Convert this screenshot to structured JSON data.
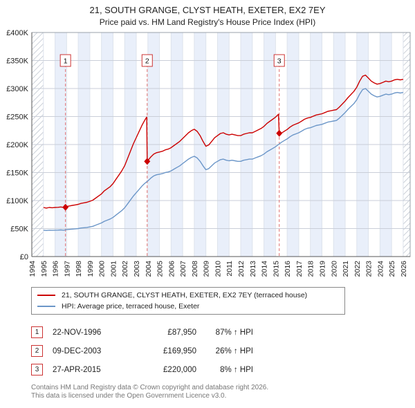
{
  "header": {
    "title": "21, SOUTH GRANGE, CLYST HEATH, EXETER, EX2 7EY",
    "subtitle": "Price paid vs. HM Land Registry's House Price Index (HPI)"
  },
  "colors": {
    "property_line": "#cc0000",
    "hpi_line": "#6b96c8",
    "badge_border": "#cc3333",
    "band_fill": "#e9effa",
    "grid_h": "#c9ced8",
    "grid_v": "#dde3ec",
    "sale_line": "#e07070",
    "hatch_line": "#b6bdc8",
    "axis": "#555555"
  },
  "chart_data": {
    "type": "line",
    "title": "Price paid vs. HM Land Registry's House Price Index (HPI)",
    "values_unit": "GBP thousands",
    "x_range": [
      1994,
      2026.6
    ],
    "y_range": [
      0,
      400
    ],
    "y_tick_values": [
      0,
      50,
      100,
      150,
      200,
      250,
      300,
      350,
      400
    ],
    "y_tick_labels": [
      "£0",
      "£50K",
      "£100K",
      "£150K",
      "£200K",
      "£250K",
      "£300K",
      "£350K",
      "£400K"
    ],
    "x_tick_years": [
      1994,
      1995,
      1996,
      1997,
      1998,
      1999,
      2000,
      2001,
      2002,
      2003,
      2004,
      2005,
      2006,
      2007,
      2008,
      2009,
      2010,
      2011,
      2012,
      2013,
      2014,
      2015,
      2016,
      2017,
      2018,
      2019,
      2020,
      2021,
      2022,
      2023,
      2024,
      2025,
      2026
    ],
    "hatch_left_end": 1995,
    "hatch_right_start": 2026,
    "legend_position": "bottom",
    "grid": true,
    "series": [
      {
        "name": "21, SOUTH GRANGE, CLYST HEATH, EXETER, EX2 7EY (terraced house)",
        "color": "#cc0000",
        "points": [
          [
            1995,
            87.6
          ],
          [
            1995.25,
            86.6
          ],
          [
            1995.5,
            87.6
          ],
          [
            1995.75,
            87.2
          ],
          [
            1996,
            87.6
          ],
          [
            1996.25,
            87.9
          ],
          [
            1996.5,
            88.5
          ],
          [
            1996.75,
            87.6
          ],
          [
            1996.9,
            87.95
          ],
          [
            1997,
            89.4
          ],
          [
            1997.25,
            90.4
          ],
          [
            1997.5,
            91.3
          ],
          [
            1997.75,
            92.2
          ],
          [
            1998,
            93.2
          ],
          [
            1998.25,
            95
          ],
          [
            1998.5,
            95.9
          ],
          [
            1998.75,
            96.9
          ],
          [
            1999,
            98.7
          ],
          [
            1999.25,
            100.6
          ],
          [
            1999.5,
            104.3
          ],
          [
            1999.75,
            108.1
          ],
          [
            2000,
            111.8
          ],
          [
            2000.25,
            117.4
          ],
          [
            2000.5,
            121.1
          ],
          [
            2000.75,
            124.8
          ],
          [
            2001,
            130.4
          ],
          [
            2001.25,
            137.9
          ],
          [
            2001.5,
            145.3
          ],
          [
            2001.75,
            152.8
          ],
          [
            2002,
            162.1
          ],
          [
            2002.25,
            175.1
          ],
          [
            2002.5,
            188.2
          ],
          [
            2002.75,
            201.2
          ],
          [
            2003,
            212.4
          ],
          [
            2003.25,
            223.6
          ],
          [
            2003.5,
            234.7
          ],
          [
            2003.75,
            244.1
          ],
          [
            2003.9,
            249
          ],
          [
            2003.94,
            169.95
          ],
          [
            2004,
            171.5
          ],
          [
            2004.25,
            177.8
          ],
          [
            2004.5,
            182.9
          ],
          [
            2004.75,
            185.4
          ],
          [
            2005,
            186.7
          ],
          [
            2005.25,
            188
          ],
          [
            2005.5,
            190.5
          ],
          [
            2005.75,
            191.8
          ],
          [
            2006,
            194.3
          ],
          [
            2006.25,
            198.1
          ],
          [
            2006.5,
            201.9
          ],
          [
            2006.75,
            205.7
          ],
          [
            2007,
            210.8
          ],
          [
            2007.25,
            215.9
          ],
          [
            2007.5,
            221
          ],
          [
            2007.75,
            224.8
          ],
          [
            2008,
            227.3
          ],
          [
            2008.25,
            223.5
          ],
          [
            2008.5,
            215.9
          ],
          [
            2008.75,
            205.7
          ],
          [
            2009,
            196.9
          ],
          [
            2009.25,
            199.4
          ],
          [
            2009.5,
            205.7
          ],
          [
            2009.75,
            212.1
          ],
          [
            2010,
            215.9
          ],
          [
            2010.25,
            219.7
          ],
          [
            2010.5,
            221
          ],
          [
            2010.75,
            218.4
          ],
          [
            2011,
            217.2
          ],
          [
            2011.25,
            218.4
          ],
          [
            2011.5,
            217.2
          ],
          [
            2011.75,
            215.9
          ],
          [
            2012,
            215.9
          ],
          [
            2012.25,
            218.4
          ],
          [
            2012.5,
            219.7
          ],
          [
            2012.75,
            221
          ],
          [
            2013,
            221
          ],
          [
            2013.25,
            223.5
          ],
          [
            2013.5,
            226.1
          ],
          [
            2013.75,
            228.6
          ],
          [
            2014,
            232.4
          ],
          [
            2014.25,
            237.5
          ],
          [
            2014.5,
            241.3
          ],
          [
            2014.75,
            245.1
          ],
          [
            2015,
            248.9
          ],
          [
            2015.25,
            254
          ],
          [
            2015.32,
            220
          ],
          [
            2015.5,
            220.3
          ],
          [
            2015.75,
            223.6
          ],
          [
            2016,
            226.8
          ],
          [
            2016.25,
            231.1
          ],
          [
            2016.5,
            234.4
          ],
          [
            2016.75,
            236.5
          ],
          [
            2017,
            238.7
          ],
          [
            2017.25,
            241.9
          ],
          [
            2017.5,
            245.2
          ],
          [
            2017.75,
            247.3
          ],
          [
            2018,
            248.4
          ],
          [
            2018.25,
            250.6
          ],
          [
            2018.5,
            252.7
          ],
          [
            2018.75,
            253.8
          ],
          [
            2019,
            254.9
          ],
          [
            2019.25,
            257
          ],
          [
            2019.5,
            259.2
          ],
          [
            2019.75,
            260.3
          ],
          [
            2020,
            261.4
          ],
          [
            2020.25,
            262.4
          ],
          [
            2020.5,
            266.8
          ],
          [
            2020.75,
            272.2
          ],
          [
            2021,
            277.6
          ],
          [
            2021.25,
            284
          ],
          [
            2021.5,
            289.4
          ],
          [
            2021.75,
            294.8
          ],
          [
            2022,
            302.4
          ],
          [
            2022.25,
            313.2
          ],
          [
            2022.5,
            321.8
          ],
          [
            2022.75,
            324
          ],
          [
            2023,
            318.6
          ],
          [
            2023.25,
            313.2
          ],
          [
            2023.5,
            310
          ],
          [
            2023.75,
            307.8
          ],
          [
            2024,
            308.9
          ],
          [
            2024.25,
            311
          ],
          [
            2024.5,
            313.2
          ],
          [
            2024.75,
            312.1
          ],
          [
            2025,
            313.2
          ],
          [
            2025.25,
            315.4
          ],
          [
            2025.5,
            316.4
          ],
          [
            2025.75,
            315.4
          ],
          [
            2026,
            316.4
          ]
        ]
      },
      {
        "name": "HPI: Average price, terraced house, Exeter",
        "color": "#6b96c8",
        "points": [
          [
            1995,
            47
          ],
          [
            1995.25,
            46.5
          ],
          [
            1995.5,
            47
          ],
          [
            1995.75,
            46.8
          ],
          [
            1996,
            47
          ],
          [
            1996.25,
            47.2
          ],
          [
            1996.5,
            47.5
          ],
          [
            1996.75,
            47
          ],
          [
            1997,
            48
          ],
          [
            1997.25,
            48.5
          ],
          [
            1997.5,
            49
          ],
          [
            1997.75,
            49.5
          ],
          [
            1998,
            50
          ],
          [
            1998.25,
            51
          ],
          [
            1998.5,
            51.5
          ],
          [
            1998.75,
            52
          ],
          [
            1999,
            53
          ],
          [
            1999.25,
            54
          ],
          [
            1999.5,
            56
          ],
          [
            1999.75,
            58
          ],
          [
            2000,
            60
          ],
          [
            2000.25,
            63
          ],
          [
            2000.5,
            65
          ],
          [
            2000.75,
            67
          ],
          [
            2001,
            70
          ],
          [
            2001.25,
            74
          ],
          [
            2001.5,
            78
          ],
          [
            2001.75,
            82
          ],
          [
            2002,
            87
          ],
          [
            2002.25,
            94
          ],
          [
            2002.5,
            101
          ],
          [
            2002.75,
            108
          ],
          [
            2003,
            114
          ],
          [
            2003.25,
            120
          ],
          [
            2003.5,
            126
          ],
          [
            2003.75,
            131
          ],
          [
            2004,
            135
          ],
          [
            2004.25,
            140
          ],
          [
            2004.5,
            144
          ],
          [
            2004.75,
            146
          ],
          [
            2005,
            147
          ],
          [
            2005.25,
            148
          ],
          [
            2005.5,
            150
          ],
          [
            2005.75,
            151
          ],
          [
            2006,
            153
          ],
          [
            2006.25,
            156
          ],
          [
            2006.5,
            159
          ],
          [
            2006.75,
            162
          ],
          [
            2007,
            166
          ],
          [
            2007.25,
            170
          ],
          [
            2007.5,
            174
          ],
          [
            2007.75,
            177
          ],
          [
            2008,
            179
          ],
          [
            2008.25,
            176
          ],
          [
            2008.5,
            170
          ],
          [
            2008.75,
            162
          ],
          [
            2009,
            155
          ],
          [
            2009.25,
            157
          ],
          [
            2009.5,
            162
          ],
          [
            2009.75,
            167
          ],
          [
            2010,
            170
          ],
          [
            2010.25,
            173
          ],
          [
            2010.5,
            174
          ],
          [
            2010.75,
            172
          ],
          [
            2011,
            171
          ],
          [
            2011.25,
            172
          ],
          [
            2011.5,
            171
          ],
          [
            2011.75,
            170
          ],
          [
            2012,
            170
          ],
          [
            2012.25,
            172
          ],
          [
            2012.5,
            173
          ],
          [
            2012.75,
            174
          ],
          [
            2013,
            174
          ],
          [
            2013.25,
            176
          ],
          [
            2013.5,
            178
          ],
          [
            2013.75,
            180
          ],
          [
            2014,
            183
          ],
          [
            2014.25,
            187
          ],
          [
            2014.5,
            190
          ],
          [
            2014.75,
            193
          ],
          [
            2015,
            196
          ],
          [
            2015.25,
            200
          ],
          [
            2015.5,
            204
          ],
          [
            2015.75,
            207
          ],
          [
            2016,
            210
          ],
          [
            2016.25,
            214
          ],
          [
            2016.5,
            217
          ],
          [
            2016.75,
            219
          ],
          [
            2017,
            221
          ],
          [
            2017.25,
            224
          ],
          [
            2017.5,
            227
          ],
          [
            2017.75,
            229
          ],
          [
            2018,
            230
          ],
          [
            2018.25,
            232
          ],
          [
            2018.5,
            234
          ],
          [
            2018.75,
            235
          ],
          [
            2019,
            236
          ],
          [
            2019.25,
            238
          ],
          [
            2019.5,
            240
          ],
          [
            2019.75,
            241
          ],
          [
            2020,
            242
          ],
          [
            2020.25,
            243
          ],
          [
            2020.5,
            247
          ],
          [
            2020.75,
            252
          ],
          [
            2021,
            257
          ],
          [
            2021.25,
            263
          ],
          [
            2021.5,
            268
          ],
          [
            2021.75,
            273
          ],
          [
            2022,
            280
          ],
          [
            2022.25,
            290
          ],
          [
            2022.5,
            298
          ],
          [
            2022.75,
            300
          ],
          [
            2023,
            295
          ],
          [
            2023.25,
            290
          ],
          [
            2023.5,
            287
          ],
          [
            2023.75,
            285
          ],
          [
            2024,
            286
          ],
          [
            2024.25,
            288
          ],
          [
            2024.5,
            290
          ],
          [
            2024.75,
            289
          ],
          [
            2025,
            290
          ],
          [
            2025.25,
            292
          ],
          [
            2025.5,
            293
          ],
          [
            2025.75,
            292
          ],
          [
            2026,
            293
          ]
        ]
      }
    ],
    "sales": [
      {
        "label": "1",
        "x": 1996.9,
        "y": 87.95
      },
      {
        "label": "2",
        "x": 2003.94,
        "y": 169.95
      },
      {
        "label": "3",
        "x": 2015.32,
        "y": 220
      }
    ]
  },
  "legend": {
    "items": [
      {
        "label": "21, SOUTH GRANGE, CLYST HEATH, EXETER, EX2 7EY (terraced house)",
        "color": "#cc0000"
      },
      {
        "label": "HPI: Average price, terraced house, Exeter",
        "color": "#6b96c8"
      }
    ]
  },
  "transactions": [
    {
      "num": "1",
      "date": "22-NOV-1996",
      "price": "£87,950",
      "hpi_delta": "87% ↑ HPI"
    },
    {
      "num": "2",
      "date": "09-DEC-2003",
      "price": "£169,950",
      "hpi_delta": "26% ↑ HPI"
    },
    {
      "num": "3",
      "date": "27-APR-2015",
      "price": "£220,000",
      "hpi_delta": "8% ↑ HPI"
    }
  ],
  "footer": {
    "line1": "Contains HM Land Registry data © Crown copyright and database right 2026.",
    "line2": "This data is licensed under the Open Government Licence v3.0."
  }
}
